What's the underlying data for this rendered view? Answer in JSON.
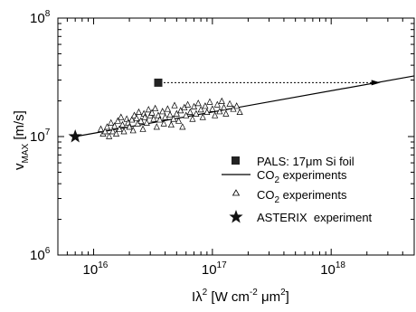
{
  "chart_data": {
    "type": "scatter",
    "xscale": "log",
    "yscale": "log",
    "xlim": [
      5000000000000000.0,
      5e+18
    ],
    "ylim": [
      1000000.0,
      100000000.0
    ],
    "x_ticks": [
      {
        "value": 1e+16,
        "base": "10",
        "exp": "16"
      },
      {
        "value": 1e+17,
        "base": "10",
        "exp": "17"
      },
      {
        "value": 1e+18,
        "base": "10",
        "exp": "18"
      }
    ],
    "y_ticks": [
      {
        "value": 1000000.0,
        "base": "10",
        "exp": "6"
      },
      {
        "value": 10000000.0,
        "base": "10",
        "exp": "7"
      },
      {
        "value": 100000000.0,
        "base": "10",
        "exp": "8"
      }
    ],
    "xlabel": {
      "main": "Iλ",
      "sup1": "2",
      "mid1": " [W cm",
      "sup2": "-2",
      "mid2": " μm",
      "sup3": "2",
      "end": "]"
    },
    "ylabel": {
      "main": "v",
      "sub": "MAX",
      "end": " [m/s]"
    },
    "grid": false,
    "legend_position": "right",
    "legend": [
      {
        "marker": "filled-square",
        "text": "PALS: 17μm Si foil"
      },
      {
        "marker": "line",
        "text_main": "CO",
        "text_sub": "2",
        "text_end": " experiments"
      },
      {
        "marker": "open-triangle",
        "text_main": "CO",
        "text_sub": "2",
        "text_end": " experiments"
      },
      {
        "marker": "star",
        "text": "ASTERIX  experiment"
      }
    ],
    "series": [
      {
        "marker": "filled-square",
        "points": [
          {
            "x": 3.5e+16,
            "y": 28500000.0
          }
        ]
      },
      {
        "marker": "dashed-arrow",
        "from": {
          "x": 3.5e+16,
          "y": 28500000.0
        },
        "to": {
          "x": 2.6e+18,
          "y": 28500000.0
        }
      },
      {
        "marker": "line",
        "points": [
          {
            "x": 7000000000000000.0,
            "y": 10000000.0
          },
          {
            "x": 5e+18,
            "y": 32500000.0
          }
        ]
      },
      {
        "marker": "star",
        "points": [
          {
            "x": 7000000000000000.0,
            "y": 10000000.0
          }
        ]
      },
      {
        "marker": "open-triangle",
        "points": [
          {
            "x": 1.15e+16,
            "y": 11500000.0
          },
          {
            "x": 1.2e+16,
            "y": 10500000.0
          },
          {
            "x": 1.25e+16,
            "y": 11000000.0
          },
          {
            "x": 1.3e+16,
            "y": 12000000.0
          },
          {
            "x": 1.35e+16,
            "y": 10000000.0
          },
          {
            "x": 1.4e+16,
            "y": 13000000.0
          },
          {
            "x": 1.45e+16,
            "y": 11000000.0
          },
          {
            "x": 1.5e+16,
            "y": 12200000.0
          },
          {
            "x": 1.55e+16,
            "y": 10500000.0
          },
          {
            "x": 1.6e+16,
            "y": 13500000.0
          },
          {
            "x": 1.65e+16,
            "y": 11500000.0
          },
          {
            "x": 1.7e+16,
            "y": 14500000.0
          },
          {
            "x": 1.75e+16,
            "y": 12500000.0
          },
          {
            "x": 1.8e+16,
            "y": 11000000.0
          },
          {
            "x": 1.9e+16,
            "y": 14000000.0
          },
          {
            "x": 1.95e+16,
            "y": 13000000.0
          },
          {
            "x": 2e+16,
            "y": 12000000.0
          },
          {
            "x": 2.1e+16,
            "y": 13800000.0
          },
          {
            "x": 2.15e+16,
            "y": 11200000.0
          },
          {
            "x": 2.2e+16,
            "y": 15000000.0
          },
          {
            "x": 2.3e+16,
            "y": 14200000.0
          },
          {
            "x": 2.35e+16,
            "y": 12800000.0
          },
          {
            "x": 2.4e+16,
            "y": 16000000.0
          },
          {
            "x": 2.5e+16,
            "y": 13500000.0
          },
          {
            "x": 2.6e+16,
            "y": 11500000.0
          },
          {
            "x": 2.65e+16,
            "y": 15500000.0
          },
          {
            "x": 2.7e+16,
            "y": 14500000.0
          },
          {
            "x": 2.8e+16,
            "y": 13000000.0
          },
          {
            "x": 2.9e+16,
            "y": 16800000.0
          },
          {
            "x": 3e+16,
            "y": 15000000.0
          },
          {
            "x": 3.1e+16,
            "y": 15800000.0
          },
          {
            "x": 3.2e+16,
            "y": 14000000.0
          },
          {
            "x": 3.3e+16,
            "y": 17200000.0
          },
          {
            "x": 3.4e+16,
            "y": 12000000.0
          },
          {
            "x": 3.5e+16,
            "y": 15000000.0
          },
          {
            "x": 3.6e+16,
            "y": 13800000.0
          },
          {
            "x": 3.8e+16,
            "y": 16200000.0
          },
          {
            "x": 3.9e+16,
            "y": 12800000.0
          },
          {
            "x": 4e+16,
            "y": 14500000.0
          },
          {
            "x": 4.2e+16,
            "y": 17000000.0
          },
          {
            "x": 4.4e+16,
            "y": 15200000.0
          },
          {
            "x": 4.5e+16,
            "y": 12500000.0
          },
          {
            "x": 4.7e+16,
            "y": 14000000.0
          },
          {
            "x": 4.8e+16,
            "y": 18200000.0
          },
          {
            "x": 5e+16,
            "y": 15500000.0
          },
          {
            "x": 5.2e+16,
            "y": 13500000.0
          },
          {
            "x": 5.4e+16,
            "y": 16500000.0
          },
          {
            "x": 5.6e+16,
            "y": 12000000.0
          },
          {
            "x": 5.8e+16,
            "y": 17500000.0
          },
          {
            "x": 6e+16,
            "y": 15000000.0
          },
          {
            "x": 6.2e+16,
            "y": 18500000.0
          },
          {
            "x": 6.5e+16,
            "y": 16000000.0
          },
          {
            "x": 6.8e+16,
            "y": 14000000.0
          },
          {
            "x": 7e+16,
            "y": 17800000.0
          },
          {
            "x": 7.3e+16,
            "y": 15500000.0
          },
          {
            "x": 7.6e+16,
            "y": 19000000.0
          },
          {
            "x": 8e+16,
            "y": 16800000.0
          },
          {
            "x": 8.3e+16,
            "y": 14500000.0
          },
          {
            "x": 8.7e+16,
            "y": 18000000.0
          },
          {
            "x": 9e+16,
            "y": 16000000.0
          },
          {
            "x": 9.5e+16,
            "y": 19500000.0
          },
          {
            "x": 1e+17,
            "y": 17000000.0
          },
          {
            "x": 1.05e+17,
            "y": 15000000.0
          },
          {
            "x": 1.1e+17,
            "y": 18500000.0
          },
          {
            "x": 1.15e+17,
            "y": 16200000.0
          },
          {
            "x": 1.2e+17,
            "y": 19800000.0
          },
          {
            "x": 1.25e+17,
            "y": 17500000.0
          },
          {
            "x": 1.3e+17,
            "y": 15500000.0
          },
          {
            "x": 1.4e+17,
            "y": 18800000.0
          },
          {
            "x": 1.5e+17,
            "y": 17000000.0
          },
          {
            "x": 1.6e+17,
            "y": 18000000.0
          },
          {
            "x": 1.7e+17,
            "y": 16000000.0
          }
        ]
      }
    ]
  }
}
